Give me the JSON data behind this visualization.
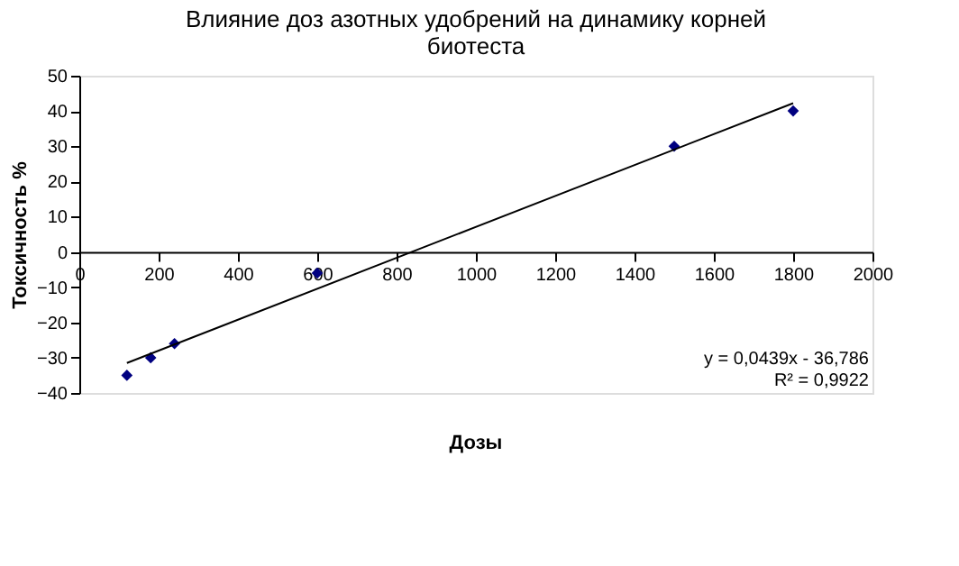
{
  "chart_data": {
    "type": "scatter",
    "title": [
      "Влияние доз азотных удобрений на динамику корней",
      "биотеста"
    ],
    "xlabel": "Дозы",
    "ylabel": "Токсичность %",
    "x": [
      120,
      180,
      240,
      600,
      1500,
      1800
    ],
    "series": [
      {
        "color": "#000080",
        "values": [
          -35,
          -30,
          -26,
          -6,
          30,
          40
        ],
        "marker": "diamond"
      },
      {
        "type": "line",
        "color": "#000000",
        "x": [
          120,
          1800
        ],
        "values": [
          -31.5,
          42.2
        ],
        "marker": "none"
      }
    ],
    "xlim": [
      0,
      2000
    ],
    "xticks": [
      0,
      200,
      400,
      600,
      800,
      1000,
      1200,
      1400,
      1600,
      1800,
      2000
    ],
    "ylim": [
      -40,
      50
    ],
    "yticks": [
      -40,
      -30,
      -20,
      -10,
      0,
      10,
      20,
      30,
      40,
      50
    ],
    "annotations": [
      "y = 0,0439x - 36,786",
      "R² = 0,9922"
    ],
    "grid": false
  }
}
